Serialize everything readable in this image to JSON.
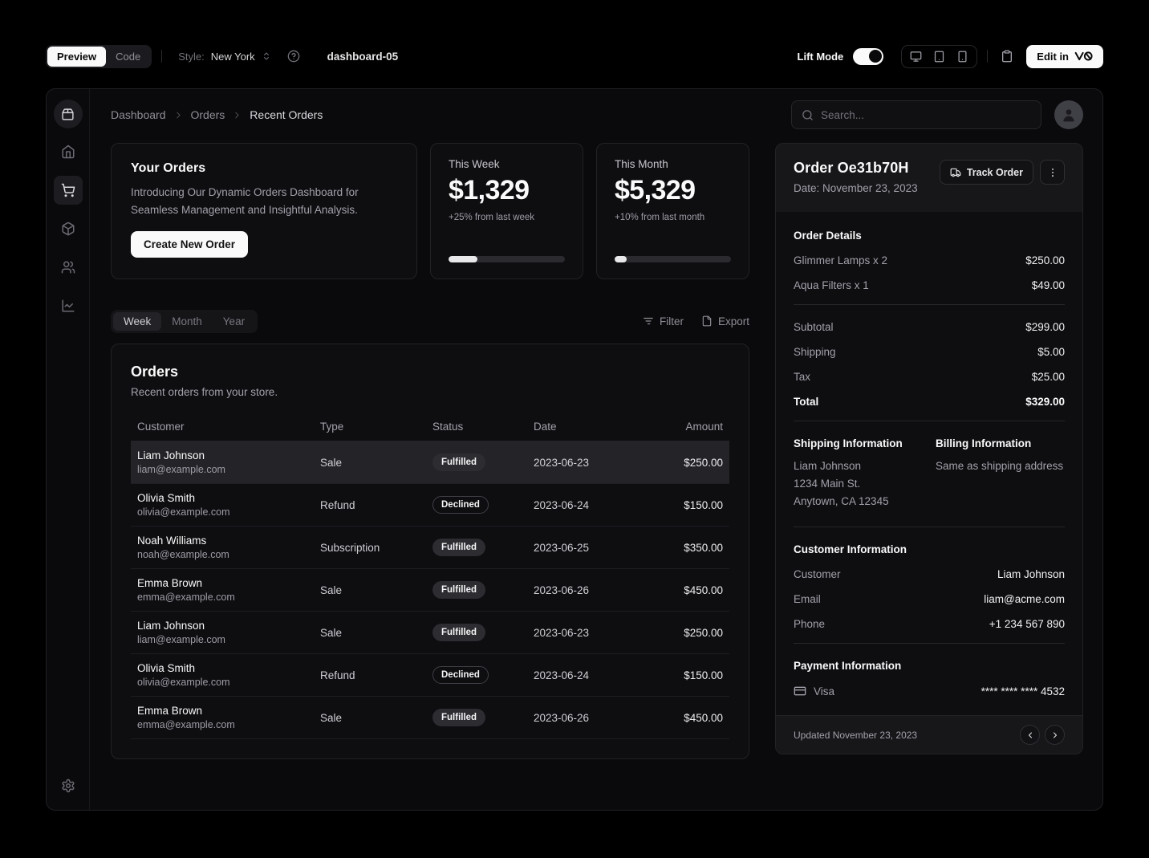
{
  "toolbar": {
    "preview_label": "Preview",
    "code_label": "Code",
    "style_label": "Style:",
    "style_value": "New York",
    "page_title": "dashboard-05",
    "lift_mode_label": "Lift Mode",
    "lift_mode_on": true,
    "edit_in_label": "Edit in"
  },
  "header": {
    "breadcrumb": [
      "Dashboard",
      "Orders",
      "Recent Orders"
    ],
    "search_placeholder": "Search..."
  },
  "sidebar": {
    "icons": [
      "package-2-logo",
      "home",
      "shopping-cart",
      "package",
      "users",
      "line-chart",
      "settings"
    ],
    "active_icon": "shopping-cart"
  },
  "intro_card": {
    "title": "Your Orders",
    "description": "Introducing Our Dynamic Orders Dashboard for Seamless Management and Insightful Analysis.",
    "button_label": "Create New Order"
  },
  "stats": [
    {
      "label": "This Week",
      "value": "$1,329",
      "delta": "+25% from last week",
      "progress_pct": 25
    },
    {
      "label": "This Month",
      "value": "$5,329",
      "delta": "+10% from last month",
      "progress_pct": 10
    }
  ],
  "period_tabs": {
    "items": [
      "Week",
      "Month",
      "Year"
    ],
    "active": "Week"
  },
  "table_actions": {
    "filter_label": "Filter",
    "export_label": "Export"
  },
  "orders_table": {
    "title": "Orders",
    "subtitle": "Recent orders from your store.",
    "columns": [
      "Customer",
      "Type",
      "Status",
      "Date",
      "Amount"
    ],
    "rows": [
      {
        "name": "Liam Johnson",
        "email": "liam@example.com",
        "type": "Sale",
        "status": "Fulfilled",
        "badge": "filled",
        "date": "2023-06-23",
        "amount": "$250.00",
        "selected": true
      },
      {
        "name": "Olivia Smith",
        "email": "olivia@example.com",
        "type": "Refund",
        "status": "Declined",
        "badge": "outline",
        "date": "2023-06-24",
        "amount": "$150.00",
        "selected": false
      },
      {
        "name": "Noah Williams",
        "email": "noah@example.com",
        "type": "Subscription",
        "status": "Fulfilled",
        "badge": "filled",
        "date": "2023-06-25",
        "amount": "$350.00",
        "selected": false
      },
      {
        "name": "Emma Brown",
        "email": "emma@example.com",
        "type": "Sale",
        "status": "Fulfilled",
        "badge": "filled",
        "date": "2023-06-26",
        "amount": "$450.00",
        "selected": false
      },
      {
        "name": "Liam Johnson",
        "email": "liam@example.com",
        "type": "Sale",
        "status": "Fulfilled",
        "badge": "filled",
        "date": "2023-06-23",
        "amount": "$250.00",
        "selected": false
      },
      {
        "name": "Olivia Smith",
        "email": "olivia@example.com",
        "type": "Refund",
        "status": "Declined",
        "badge": "outline",
        "date": "2023-06-24",
        "amount": "$150.00",
        "selected": false
      },
      {
        "name": "Emma Brown",
        "email": "emma@example.com",
        "type": "Sale",
        "status": "Fulfilled",
        "badge": "filled",
        "date": "2023-06-26",
        "amount": "$450.00",
        "selected": false
      }
    ]
  },
  "order_card": {
    "title": "Order Oe31b70H",
    "date_label": "Date: November 23, 2023",
    "track_order_label": "Track Order",
    "details_heading": "Order Details",
    "items": [
      {
        "label": "Glimmer Lamps x 2",
        "value": "$250.00"
      },
      {
        "label": "Aqua Filters x 1",
        "value": "$49.00"
      }
    ],
    "totals": [
      {
        "label": "Subtotal",
        "value": "$299.00"
      },
      {
        "label": "Shipping",
        "value": "$5.00"
      },
      {
        "label": "Tax",
        "value": "$25.00"
      },
      {
        "label": "Total",
        "value": "$329.00",
        "emphasis": true
      }
    ],
    "shipping": {
      "heading": "Shipping Information",
      "lines": [
        "Liam Johnson",
        "1234 Main St.",
        "Anytown, CA 12345"
      ]
    },
    "billing": {
      "heading": "Billing Information",
      "text": "Same as shipping address"
    },
    "customer": {
      "heading": "Customer Information",
      "rows": [
        {
          "label": "Customer",
          "value": "Liam Johnson"
        },
        {
          "label": "Email",
          "value": "liam@acme.com"
        },
        {
          "label": "Phone",
          "value": "+1 234 567 890"
        }
      ]
    },
    "payment": {
      "heading": "Payment Information",
      "method": "Visa",
      "card_number": "**** **** **** 4532"
    },
    "footer_text": "Updated November 23, 2023"
  },
  "colors": {
    "accent": "#fafafa",
    "page_bg": "#000000",
    "selected_row_bg": "#232328",
    "badge_filled_bg": "#2c2c31"
  }
}
